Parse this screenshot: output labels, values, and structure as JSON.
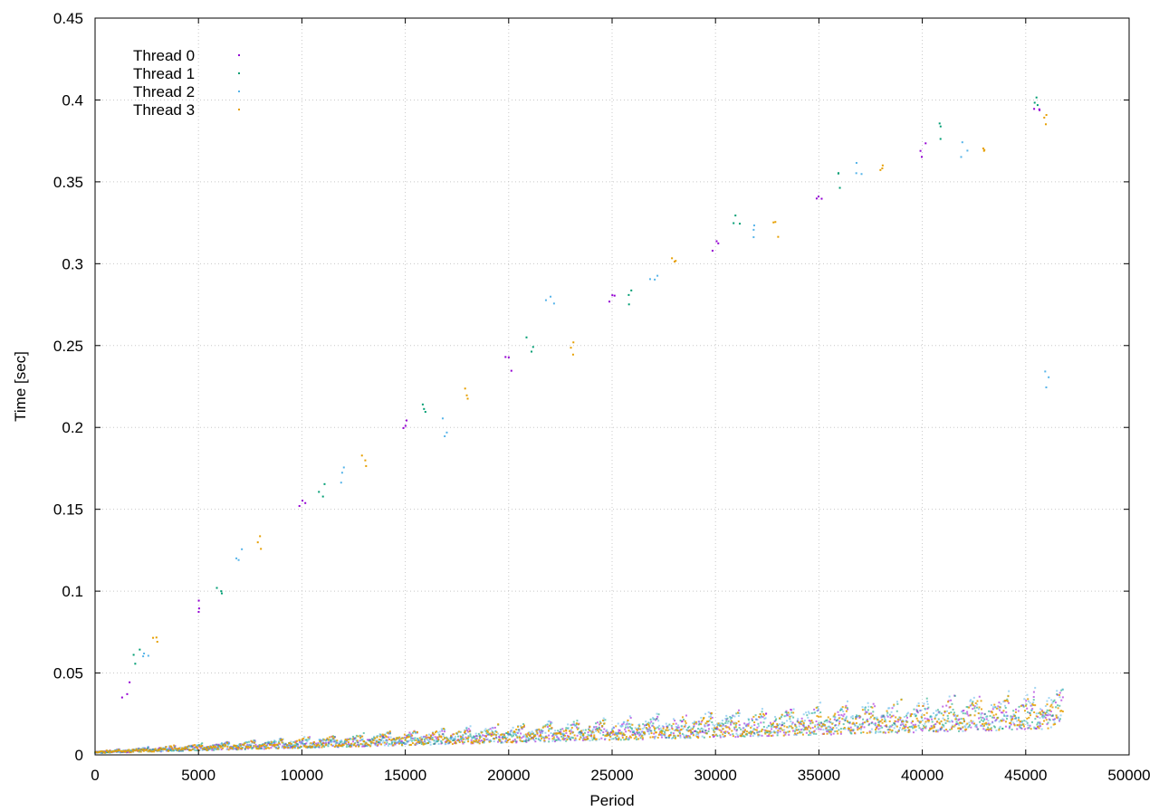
{
  "chart_data": {
    "type": "scatter",
    "title": "",
    "xlabel": "Period",
    "ylabel": "Time [sec]",
    "xlim": [
      0,
      50000
    ],
    "ylim": [
      0,
      0.45
    ],
    "xticks": [
      "0",
      "5000",
      "10000",
      "15000",
      "20000",
      "25000",
      "30000",
      "35000",
      "40000",
      "45000",
      "50000"
    ],
    "yticks": [
      "0",
      "0.05",
      "0.1",
      "0.15",
      "0.2",
      "0.25",
      "0.3",
      "0.35",
      "0.4",
      "0.45"
    ],
    "grid": true,
    "legend_position": "top-left",
    "point_count_per_series": 46800,
    "series": [
      {
        "name": "Thread 0",
        "color": "#9400d3",
        "baseline_start": [
          0,
          0.001
        ],
        "baseline_end": [
          46800,
          0.02
        ],
        "band_start": [
          0,
          0.003
        ],
        "band_end": [
          46800,
          0.045
        ],
        "upper_outliers": [
          [
            1500,
            0.04
          ],
          [
            5000,
            0.09
          ],
          [
            10000,
            0.15
          ],
          [
            15000,
            0.2
          ],
          [
            20000,
            0.24
          ],
          [
            25000,
            0.28
          ],
          [
            30000,
            0.31
          ],
          [
            35000,
            0.34
          ],
          [
            40000,
            0.37
          ],
          [
            45500,
            0.39
          ]
        ]
      },
      {
        "name": "Thread 1",
        "color": "#009e73",
        "baseline_start": [
          0,
          0.001
        ],
        "baseline_end": [
          46800,
          0.02
        ],
        "band_start": [
          0,
          0.003
        ],
        "band_end": [
          46800,
          0.045
        ],
        "upper_outliers": [
          [
            2000,
            0.06
          ],
          [
            6000,
            0.1
          ],
          [
            11000,
            0.16
          ],
          [
            16000,
            0.21
          ],
          [
            21000,
            0.25
          ],
          [
            26000,
            0.28
          ],
          [
            31000,
            0.33
          ],
          [
            36000,
            0.35
          ],
          [
            41000,
            0.38
          ],
          [
            45500,
            0.4
          ]
        ]
      },
      {
        "name": "Thread 2",
        "color": "#56b4e9",
        "baseline_start": [
          0,
          0.001
        ],
        "baseline_end": [
          46800,
          0.02
        ],
        "band_start": [
          0,
          0.003
        ],
        "band_end": [
          46800,
          0.048
        ],
        "upper_outliers": [
          [
            2500,
            0.065
          ],
          [
            7000,
            0.12
          ],
          [
            12000,
            0.17
          ],
          [
            17000,
            0.2
          ],
          [
            22000,
            0.28
          ],
          [
            27000,
            0.29
          ],
          [
            32000,
            0.32
          ],
          [
            37000,
            0.36
          ],
          [
            42000,
            0.37
          ],
          [
            46000,
            0.23
          ]
        ]
      },
      {
        "name": "Thread 3",
        "color": "#e69f00",
        "baseline_start": [
          0,
          0.001
        ],
        "baseline_end": [
          46800,
          0.02
        ],
        "band_start": [
          0,
          0.003
        ],
        "band_end": [
          46800,
          0.045
        ],
        "upper_outliers": [
          [
            3000,
            0.07
          ],
          [
            8000,
            0.13
          ],
          [
            13000,
            0.18
          ],
          [
            18000,
            0.22
          ],
          [
            23000,
            0.25
          ],
          [
            28000,
            0.3
          ],
          [
            33000,
            0.32
          ],
          [
            38000,
            0.36
          ],
          [
            43000,
            0.37
          ],
          [
            45800,
            0.385
          ]
        ]
      }
    ]
  }
}
